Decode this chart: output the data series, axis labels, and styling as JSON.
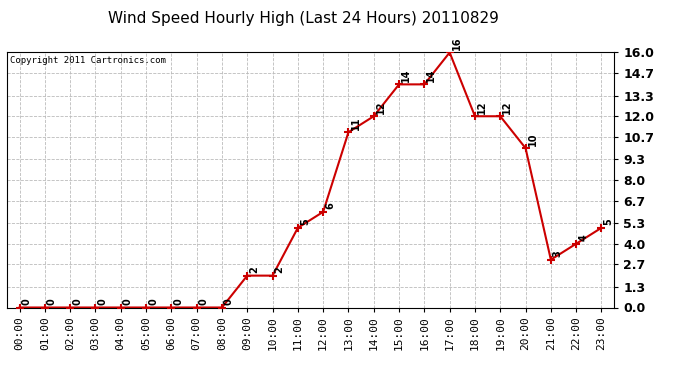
{
  "title": "Wind Speed Hourly High (Last 24 Hours) 20110829",
  "copyright": "Copyright 2011 Cartronics.com",
  "hours": [
    "00:00",
    "01:00",
    "02:00",
    "03:00",
    "04:00",
    "05:00",
    "06:00",
    "07:00",
    "08:00",
    "09:00",
    "10:00",
    "11:00",
    "12:00",
    "13:00",
    "14:00",
    "15:00",
    "16:00",
    "17:00",
    "18:00",
    "19:00",
    "20:00",
    "21:00",
    "22:00",
    "23:00"
  ],
  "values": [
    0,
    0,
    0,
    0,
    0,
    0,
    0,
    0,
    0,
    2,
    2,
    5,
    6,
    11,
    12,
    14,
    14,
    16,
    12,
    12,
    10,
    3,
    4,
    5
  ],
  "line_color": "#cc0000",
  "marker": "+",
  "marker_size": 6,
  "marker_color": "#cc0000",
  "bg_color": "#ffffff",
  "plot_bg_color": "#ffffff",
  "grid_color": "#bbbbbb",
  "title_fontsize": 11,
  "ylim": [
    0.0,
    16.0
  ],
  "yticks": [
    0.0,
    1.3,
    2.7,
    4.0,
    5.3,
    6.7,
    8.0,
    9.3,
    10.7,
    12.0,
    13.3,
    14.7,
    16.0
  ],
  "ytick_labels": [
    "0.0",
    "1.3",
    "2.7",
    "4.0",
    "5.3",
    "6.7",
    "8.0",
    "9.3",
    "10.7",
    "12.0",
    "13.3",
    "14.7",
    "16.0"
  ],
  "annotation_color": "#000000",
  "annotation_fontsize": 7,
  "copyright_fontsize": 6.5,
  "tick_fontsize": 8,
  "ytick_fontsize": 9
}
